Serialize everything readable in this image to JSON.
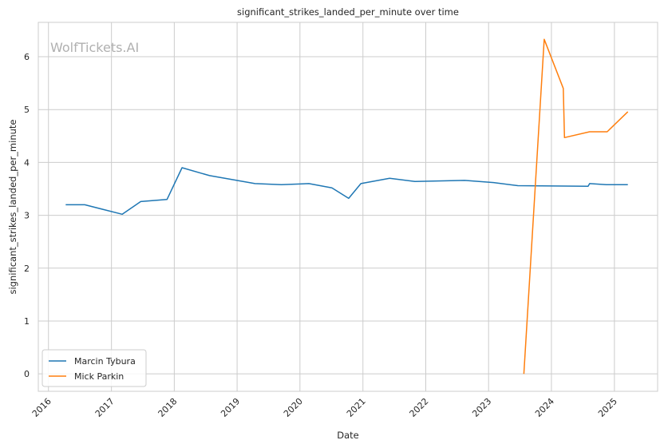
{
  "chart_data": {
    "type": "line",
    "title": "significant_strikes_landed_per_minute over time",
    "xlabel": "Date",
    "ylabel": "significant_strikes_landed_per_minute",
    "watermark": "WolfTickets.AI",
    "x_ticks": [
      "2016",
      "2017",
      "2018",
      "2019",
      "2020",
      "2021",
      "2022",
      "2023",
      "2024",
      "2025"
    ],
    "y_ticks": [
      "0",
      "1",
      "2",
      "3",
      "4",
      "5",
      "6"
    ],
    "xlim": [
      "2015-11-03",
      "2025-09-09"
    ],
    "ylim": [
      -0.33,
      6.65
    ],
    "grid": true,
    "legend_position": "lower-left",
    "colors": {
      "Marcin Tybura": "#1f77b4",
      "Mick Parkin": "#ff7f0e"
    },
    "series": [
      {
        "name": "Marcin Tybura",
        "points": [
          [
            "2016-04-10",
            3.2
          ],
          [
            "2016-07-30",
            3.2
          ],
          [
            "2017-03-05",
            3.02
          ],
          [
            "2017-06-20",
            3.26
          ],
          [
            "2017-11-20",
            3.3
          ],
          [
            "2018-02-15",
            3.9
          ],
          [
            "2018-07-25",
            3.75
          ],
          [
            "2019-04-15",
            3.6
          ],
          [
            "2019-09-15",
            3.58
          ],
          [
            "2020-02-22",
            3.6
          ],
          [
            "2020-07-05",
            3.52
          ],
          [
            "2020-10-10",
            3.32
          ],
          [
            "2020-12-20",
            3.6
          ],
          [
            "2021-06-05",
            3.7
          ],
          [
            "2021-10-30",
            3.64
          ],
          [
            "2022-08-15",
            3.66
          ],
          [
            "2023-01-30",
            3.62
          ],
          [
            "2023-06-20",
            3.56
          ],
          [
            "2024-08-01",
            3.55
          ],
          [
            "2024-08-10",
            3.6
          ],
          [
            "2024-11-15",
            3.58
          ],
          [
            "2025-03-20",
            3.58
          ]
        ]
      },
      {
        "name": "Mick Parkin",
        "points": [
          [
            "2023-07-25",
            0.0
          ],
          [
            "2023-11-20",
            6.33
          ],
          [
            "2024-03-10",
            5.4
          ],
          [
            "2024-03-17",
            4.47
          ],
          [
            "2024-08-10",
            4.58
          ],
          [
            "2024-11-20",
            4.58
          ],
          [
            "2025-03-20",
            4.96
          ]
        ]
      }
    ]
  }
}
